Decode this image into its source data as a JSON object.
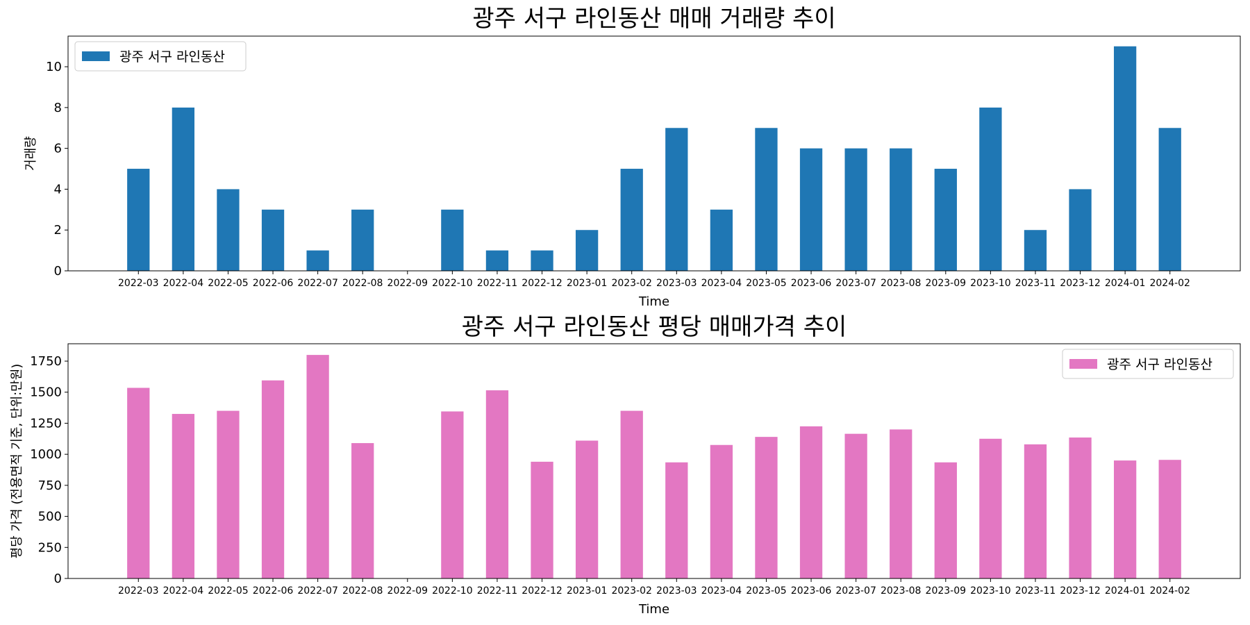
{
  "chart_data": [
    {
      "type": "bar",
      "title": "광주 서구 라인동산 매매 거래량 추이",
      "xlabel": "Time",
      "ylabel": "거래량",
      "ylim": [
        0,
        11.5
      ],
      "yticks": [
        0,
        2,
        4,
        6,
        8,
        10
      ],
      "legend_position": "top-left",
      "grid": false,
      "categories": [
        "2022-03",
        "2022-04",
        "2022-05",
        "2022-06",
        "2022-07",
        "2022-08",
        "2022-09",
        "2022-10",
        "2022-11",
        "2022-12",
        "2023-01",
        "2023-02",
        "2023-03",
        "2023-04",
        "2023-05",
        "2023-06",
        "2023-07",
        "2023-08",
        "2023-09",
        "2023-10",
        "2023-11",
        "2023-12",
        "2024-01",
        "2024-02"
      ],
      "series": [
        {
          "name": "광주 서구 라인동산",
          "color": "#1f77b4",
          "values": [
            5,
            8,
            4,
            3,
            1,
            3,
            0,
            3,
            1,
            1,
            2,
            5,
            7,
            3,
            7,
            6,
            6,
            6,
            5,
            8,
            2,
            4,
            11,
            7
          ]
        }
      ]
    },
    {
      "type": "bar",
      "title": "광주 서구 라인동산 평당 매매가격 추이",
      "xlabel": "Time",
      "ylabel": "평당 가격 (전용면적 기준, 단위:만원)",
      "ylim": [
        0,
        1890
      ],
      "yticks": [
        0,
        250,
        500,
        750,
        1000,
        1250,
        1500,
        1750
      ],
      "legend_position": "top-right",
      "grid": false,
      "categories": [
        "2022-03",
        "2022-04",
        "2022-05",
        "2022-06",
        "2022-07",
        "2022-08",
        "2022-09",
        "2022-10",
        "2022-11",
        "2022-12",
        "2023-01",
        "2023-02",
        "2023-03",
        "2023-04",
        "2023-05",
        "2023-06",
        "2023-07",
        "2023-08",
        "2023-09",
        "2023-10",
        "2023-11",
        "2023-12",
        "2024-01",
        "2024-02"
      ],
      "series": [
        {
          "name": "광주 서구 라인동산",
          "color": "#e377c2",
          "values": [
            1535,
            1325,
            1350,
            1595,
            1800,
            1090,
            null,
            1345,
            1515,
            940,
            1110,
            1350,
            935,
            1075,
            1140,
            1225,
            1165,
            1200,
            935,
            1125,
            1080,
            1135,
            950,
            955
          ]
        }
      ]
    }
  ]
}
